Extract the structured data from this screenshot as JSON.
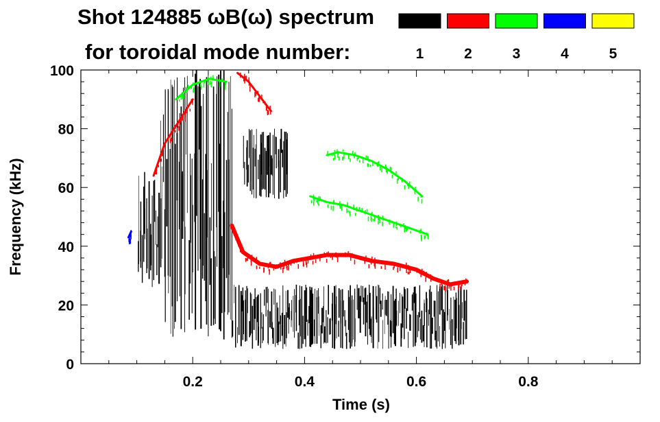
{
  "chart_data": {
    "type": "spectrogram",
    "title_line1": "Shot 124885 ωB(ω) spectrum",
    "title_line2": "for toroidal mode number:",
    "xlabel": "Time (s)",
    "ylabel": "Frequency (kHz)",
    "xlim": [
      0.0,
      1.0
    ],
    "ylim": [
      0,
      100
    ],
    "x_ticks": [
      0.2,
      0.4,
      0.6,
      0.8
    ],
    "x_tick_labels": [
      "0.2",
      "0.4",
      "0.6",
      "0.8"
    ],
    "y_ticks": [
      0,
      20,
      40,
      60,
      80,
      100
    ],
    "y_tick_labels": [
      "0",
      "20",
      "40",
      "60",
      "80",
      "100"
    ],
    "legend": [
      {
        "mode": "1",
        "color": "#000000"
      },
      {
        "mode": "2",
        "color": "#ff0000"
      },
      {
        "mode": "3",
        "color": "#00ff00"
      },
      {
        "mode": "4",
        "color": "#0000ff"
      },
      {
        "mode": "5",
        "color": "#ffff00"
      }
    ],
    "regions": [
      {
        "mode": 1,
        "name": "n1-early-broadband",
        "t": [
          0.1,
          0.14
        ],
        "f": [
          24,
          66
        ]
      },
      {
        "mode": 1,
        "name": "n1-mid-broadband",
        "t": [
          0.14,
          0.27
        ],
        "f": [
          8,
          100
        ]
      },
      {
        "mode": 1,
        "name": "n1-high-band",
        "t": [
          0.29,
          0.37
        ],
        "f": [
          56,
          80
        ]
      },
      {
        "mode": 1,
        "name": "n1-low-band",
        "t": [
          0.27,
          0.69
        ],
        "f": [
          5,
          27
        ]
      }
    ],
    "tracks": [
      {
        "mode": 2,
        "name": "n2-chirp",
        "t": [
          0.27,
          0.29,
          0.32,
          0.35,
          0.38,
          0.41,
          0.44,
          0.48,
          0.52,
          0.56,
          0.6,
          0.63,
          0.66,
          0.69
        ],
        "f": [
          47,
          38,
          34,
          33,
          35,
          36,
          37,
          37,
          35,
          34,
          32,
          29,
          27,
          28
        ]
      },
      {
        "mode": 2,
        "name": "n2-early-rising",
        "t": [
          0.13,
          0.15,
          0.18,
          0.2
        ],
        "f": [
          64,
          75,
          84,
          90
        ]
      },
      {
        "mode": 2,
        "name": "n2-early-high",
        "t": [
          0.28,
          0.3,
          0.32,
          0.34
        ],
        "f": [
          99,
          96,
          91,
          86
        ]
      },
      {
        "mode": 3,
        "name": "n3-upper",
        "t": [
          0.44,
          0.46,
          0.49,
          0.52,
          0.55,
          0.58,
          0.61
        ],
        "f": [
          71,
          72,
          71,
          69,
          66,
          62,
          57
        ]
      },
      {
        "mode": 3,
        "name": "n3-lower",
        "t": [
          0.41,
          0.44,
          0.47,
          0.5,
          0.53,
          0.56,
          0.59,
          0.62
        ],
        "f": [
          57,
          55,
          54,
          52,
          50,
          48,
          46,
          44
        ]
      },
      {
        "mode": 3,
        "name": "n3-early-burst",
        "t": [
          0.17,
          0.2,
          0.23,
          0.26
        ],
        "f": [
          90,
          95,
          97,
          96
        ]
      },
      {
        "mode": 4,
        "name": "n4-fragment",
        "t": [
          0.085,
          0.09
        ],
        "f": [
          43,
          45
        ]
      }
    ]
  }
}
